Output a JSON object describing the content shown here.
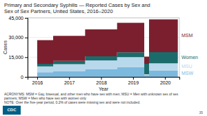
{
  "chart_data": {
    "type": "area",
    "stacked": true,
    "title": "Primary and Secondary Syphilis — Reported Cases by Sex and",
    "subtitle": "Sex of Sex Partners, United States, 2016–2020",
    "x_label": "Year",
    "y_label": "Cases",
    "x": [
      2016,
      2016.5,
      2017,
      2017.5,
      2018,
      2018.5,
      2019,
      2019.35,
      2019.5,
      2019.65,
      2020,
      2020.4
    ],
    "series": [
      {
        "name": "MSW",
        "color": "#7cb9df",
        "values": [
          3500,
          3500,
          4500,
          4500,
          6000,
          6000,
          7500,
          7500,
          1000,
          4800,
          4800,
          4800
        ]
      },
      {
        "name": "MSU",
        "color": "#b8d8ec",
        "values": [
          4500,
          4500,
          5200,
          5200,
          6500,
          6500,
          7500,
          7500,
          1000,
          5500,
          5500,
          5500
        ]
      },
      {
        "name": "Women",
        "color": "#1b6b6b",
        "values": [
          2000,
          2000,
          2500,
          2500,
          3200,
          3200,
          3700,
          3700,
          8000,
          8500,
          8500,
          8500
        ]
      },
      {
        "name": "MSM",
        "color": "#7b1f2e",
        "values": [
          18000,
          18000,
          19000,
          19000,
          20500,
          20500,
          22500,
          22500,
          5500,
          25000,
          25000,
          25000
        ]
      }
    ],
    "xlim": [
      2015.7,
      2020.45
    ],
    "xticks": [
      2016,
      2017,
      2018,
      2019,
      2020
    ],
    "ylim": [
      0,
      45000
    ],
    "yticks": [
      0,
      {
        "value": 15000,
        "label": "15,000"
      },
      {
        "value": 30000,
        "label": "30,000"
      },
      {
        "value": 45000,
        "label": "45,000"
      }
    ],
    "grid": true,
    "legend": "right",
    "line_style": "step",
    "notes": [
      "ACRONYMS: MSM = Gay, bisexual, and other men who have sex with men; MSU = Men with unknown sex of sex",
      "partners; MSW = Men who have sex with women only",
      "NOTE: Over the five-year period, 0.2% of cases were missing sex and were not included."
    ],
    "annotations": [
      "CDC",
      "35"
    ]
  }
}
